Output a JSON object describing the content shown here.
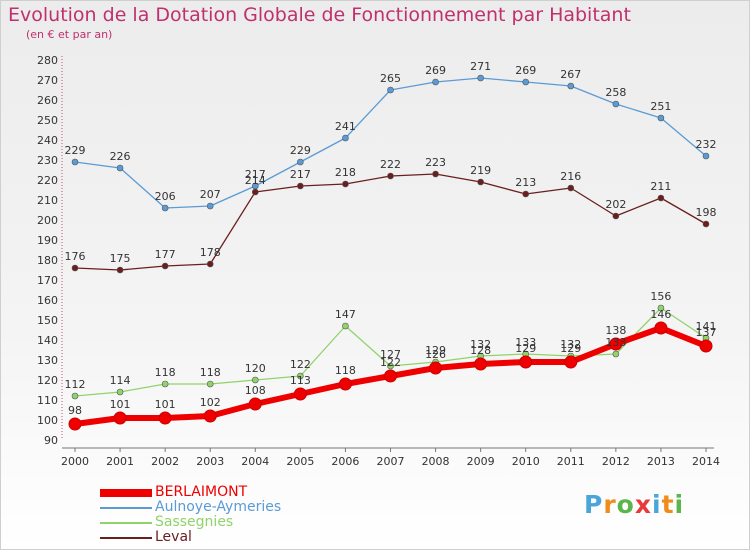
{
  "title": "Evolution de la Dotation Globale de Fonctionnement par Habitant",
  "subtitle": "(en € et par an)",
  "brand": {
    "text": "Proxiti",
    "letter_colors": [
      "#4aa6d8",
      "#f08c1c",
      "#5ab54a",
      "#e83a3a",
      "#4aa6d8",
      "#f08c1c",
      "#5ab54a"
    ]
  },
  "chart_data": {
    "type": "line",
    "x": [
      "2000",
      "2001",
      "2002",
      "2003",
      "2004",
      "2005",
      "2006",
      "2007",
      "2008",
      "2009",
      "2010",
      "2011",
      "2012",
      "2013",
      "2014"
    ],
    "ylim": [
      90,
      280
    ],
    "yticks": [
      90,
      100,
      110,
      120,
      130,
      140,
      150,
      160,
      170,
      180,
      190,
      200,
      210,
      220,
      230,
      240,
      250,
      260,
      270,
      280
    ],
    "grid": false,
    "legend_position": "bottom-left",
    "series": [
      {
        "name": "BERLAIMONT",
        "color": "#ee0000",
        "values": [
          98,
          101,
          101,
          102,
          108,
          113,
          118,
          122,
          126,
          128,
          129,
          129,
          138,
          146,
          137
        ],
        "labels": [
          "98",
          "101",
          "101",
          "102",
          "108",
          "113",
          "118",
          "122",
          "126",
          "128",
          "129",
          "129",
          "138",
          "146",
          "137"
        ]
      },
      {
        "name": "Aulnoye-Aymeries",
        "color": "#5a9bd5",
        "values": [
          229,
          226,
          206,
          207,
          217,
          229,
          241,
          265,
          269,
          271,
          269,
          267,
          258,
          251,
          232
        ],
        "labels": [
          "229",
          "226",
          "206",
          "207",
          "217",
          "229",
          "241",
          "265",
          "269",
          "271",
          "269",
          "267",
          "258",
          "251",
          "232"
        ]
      },
      {
        "name": "Sassegnies",
        "color": "#90d36a",
        "values": [
          112,
          114,
          118,
          118,
          120,
          122,
          147,
          127,
          129,
          132,
          133,
          132,
          133,
          156,
          141
        ],
        "labels": [
          "112",
          "114",
          "118",
          "118",
          "120",
          "122",
          "147",
          "127",
          "129",
          "132",
          "133",
          "132",
          "133",
          "156",
          "141"
        ]
      },
      {
        "name": "Leval",
        "color": "#6b1e1e",
        "values": [
          176,
          175,
          177,
          178,
          214,
          217,
          218,
          222,
          223,
          219,
          213,
          216,
          202,
          211,
          198
        ],
        "labels": [
          "176",
          "175",
          "177",
          "178",
          "214",
          "217",
          "218",
          "222",
          "223",
          "219",
          "213",
          "216",
          "202",
          "211",
          "198"
        ]
      }
    ]
  }
}
